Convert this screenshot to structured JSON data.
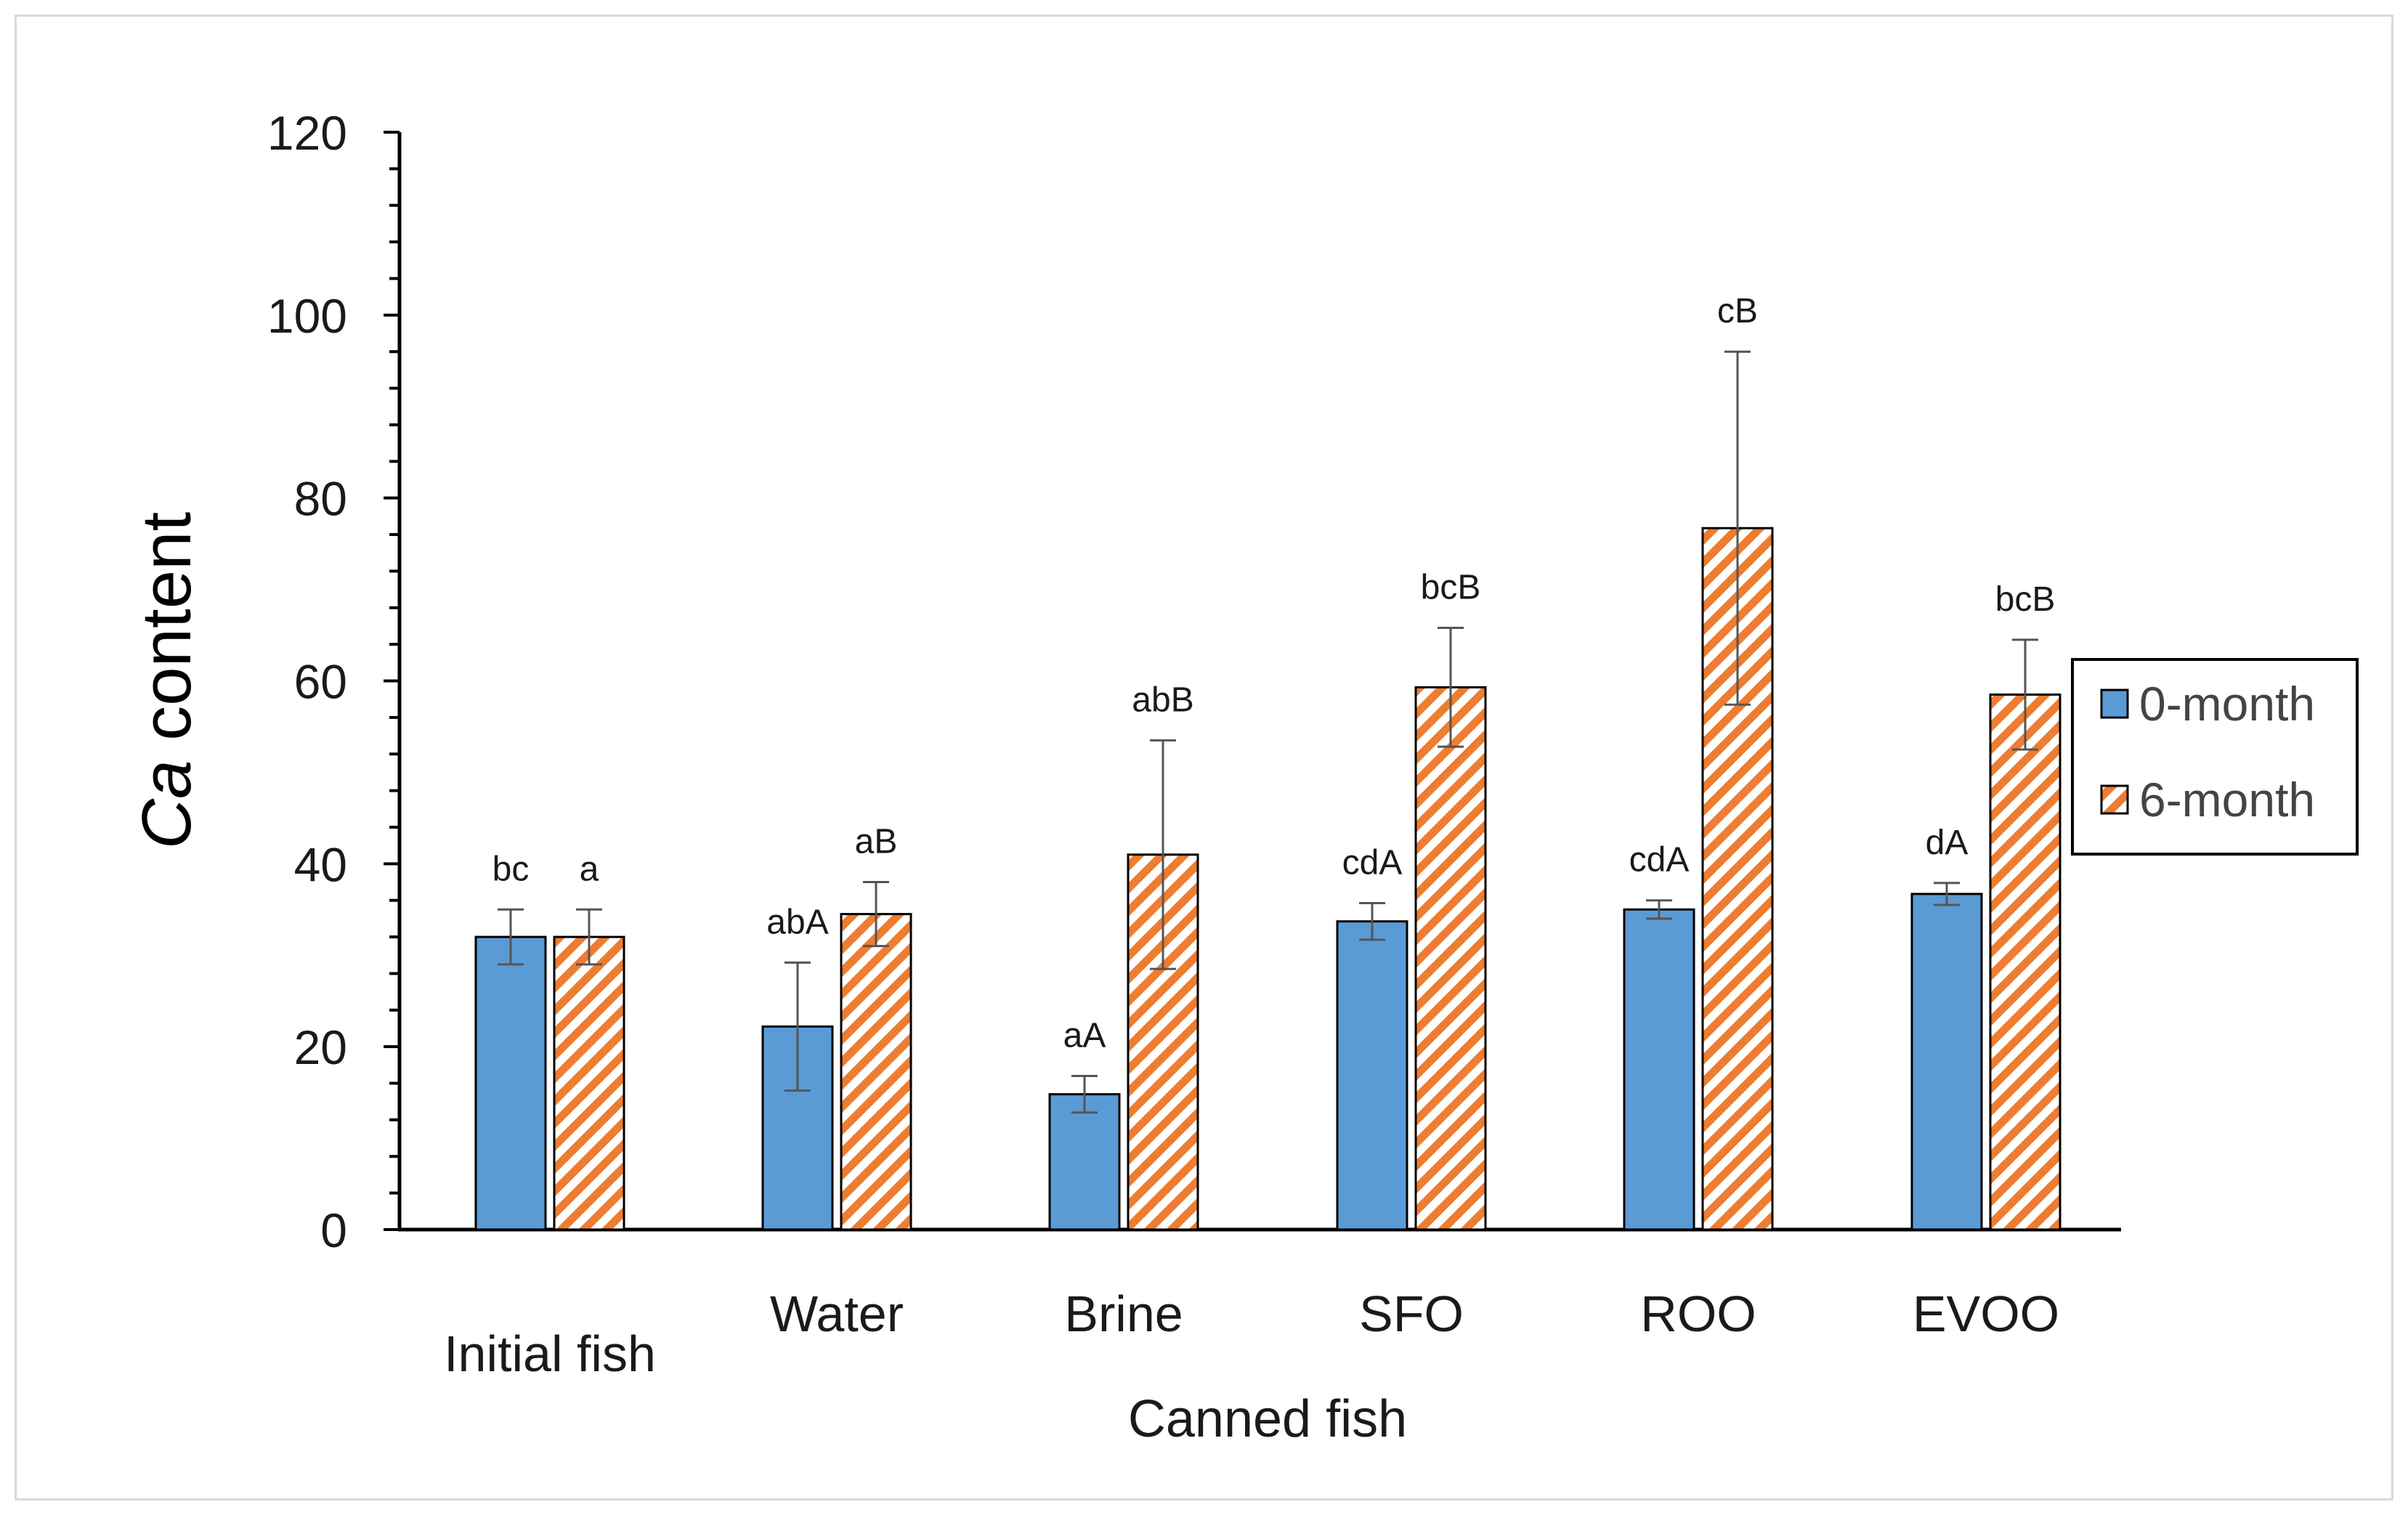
{
  "chart_data": {
    "type": "bar",
    "title": "",
    "xlabel": "Canned fish",
    "ylabel_italic": "Ca",
    "ylabel_rest": " content",
    "ylim": [
      0,
      120
    ],
    "yticks": [
      0,
      20,
      40,
      60,
      80,
      100,
      120
    ],
    "categories": [
      "Initial fish",
      "Water",
      "Brine",
      "SFO",
      "ROO",
      "EVOO"
    ],
    "series": [
      {
        "name": "0-month",
        "color": "#5b9bd5",
        "values": [
          32,
          22.2,
          14.8,
          33.7,
          35.0,
          36.7
        ],
        "errors": [
          3,
          7,
          2,
          2,
          1,
          1.2
        ],
        "letters": [
          "bc",
          "abA",
          "aA",
          "cdA",
          "cdA",
          "dA"
        ]
      },
      {
        "name": "6-month",
        "color": "#ed7d31",
        "pattern": "diagonal-hatch",
        "values": [
          32,
          34.5,
          41,
          59.3,
          76.7,
          58.5
        ],
        "errors": [
          3,
          3.5,
          12.5,
          6.5,
          19.3,
          6
        ],
        "letters": [
          "a",
          "aB",
          "abB",
          "bcB",
          "cB",
          "bcB"
        ]
      }
    ],
    "legend_position": "right"
  }
}
